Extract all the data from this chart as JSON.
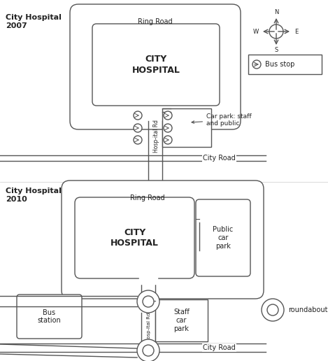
{
  "line_color": "#555555",
  "text_color": "#222222",
  "map1_title": "City Hospital\n2007",
  "map2_title": "City Hospital\n2010",
  "ring_road_label": "Ring Road",
  "hospital_label": "CITY\nHOSPITAL",
  "city_road_label": "City Road",
  "hospital_rd_label": "Hosp-ital Rd",
  "car_park_label_2007": "Car park: staff\nand public",
  "public_car_park_label": "Public\ncar\npark",
  "staff_car_park_label": "Staff\ncar\npark",
  "bus_station_label": "Bus\nstation",
  "roundabout_label": "roundabout",
  "bus_stop_label": "Bus stop",
  "compass_N": "N",
  "compass_S": "S",
  "compass_E": "E",
  "compass_W": "W"
}
